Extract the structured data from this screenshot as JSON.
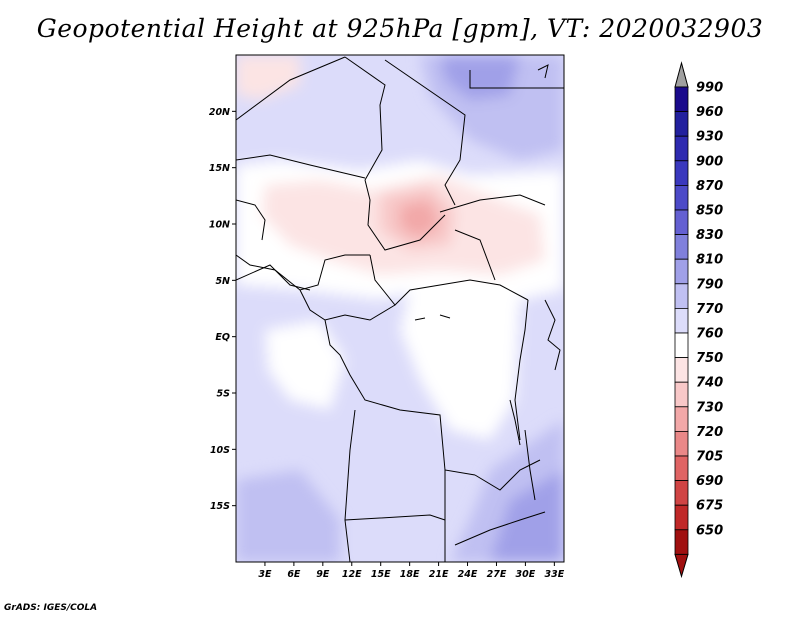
{
  "title": "Geopotential Height at 925hPa [gpm], VT: 2020032903",
  "credit": "GrADS: IGES/COLA",
  "map": {
    "lon_range": [
      0,
      34
    ],
    "lat_range": [
      -20,
      25
    ],
    "lat_ticks": [
      {
        "value": 20,
        "label": "20N"
      },
      {
        "value": 15,
        "label": "15N"
      },
      {
        "value": 10,
        "label": "10N"
      },
      {
        "value": 5,
        "label": "5N"
      },
      {
        "value": 0,
        "label": "EQ"
      },
      {
        "value": -5,
        "label": "5S"
      },
      {
        "value": -10,
        "label": "10S"
      },
      {
        "value": -15,
        "label": "15S"
      }
    ],
    "lon_ticks": [
      {
        "value": 3,
        "label": "3E"
      },
      {
        "value": 6,
        "label": "6E"
      },
      {
        "value": 9,
        "label": "9E"
      },
      {
        "value": 12,
        "label": "12E"
      },
      {
        "value": 15,
        "label": "15E"
      },
      {
        "value": 18,
        "label": "18E"
      },
      {
        "value": 21,
        "label": "21E"
      },
      {
        "value": 24,
        "label": "24E"
      },
      {
        "value": 27,
        "label": "27E"
      },
      {
        "value": 30,
        "label": "30E"
      },
      {
        "value": 33,
        "label": "33E"
      }
    ]
  },
  "colorbar": {
    "levels": [
      "990",
      "960",
      "930",
      "900",
      "870",
      "850",
      "830",
      "810",
      "790",
      "770",
      "760",
      "750",
      "740",
      "730",
      "720",
      "705",
      "690",
      "675",
      "650"
    ],
    "colors": [
      "#1a0a8c",
      "#22209e",
      "#2e2ab0",
      "#3a38be",
      "#4c4ac8",
      "#6460d2",
      "#8080dc",
      "#a0a0e8",
      "#c0c0f2",
      "#dcdcfa",
      "#ffffff",
      "#fce4e4",
      "#f8c8c8",
      "#f2a8a8",
      "#ea8888",
      "#e06464",
      "#d04444",
      "#c02828",
      "#a01010"
    ],
    "top_arrow_color": "#a0a0a0",
    "bottom_arrow_color": "#a01010"
  }
}
